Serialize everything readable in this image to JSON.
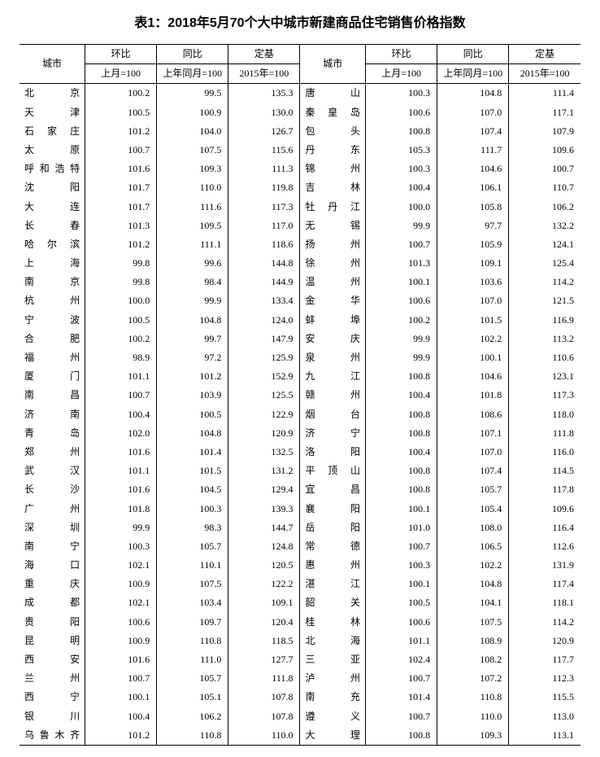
{
  "title": "表1：2018年5月70个大中城市新建商品住宅销售价格指数",
  "header": {
    "city": "城市",
    "huanbi": "环比",
    "tongbi": "同比",
    "dingji": "定基",
    "sub_huanbi": "上月=100",
    "sub_tongbi": "上年同月=100",
    "sub_dingji": "2015年=100"
  },
  "rows": [
    {
      "c1": "北京",
      "h1": "100.2",
      "t1": "99.5",
      "d1": "135.3",
      "c2": "唐山",
      "h2": "100.3",
      "t2": "104.8",
      "d2": "111.4"
    },
    {
      "c1": "天津",
      "h1": "100.5",
      "t1": "100.9",
      "d1": "130.0",
      "c2": "秦皇岛",
      "h2": "100.6",
      "t2": "107.0",
      "d2": "117.1"
    },
    {
      "c1": "石家庄",
      "h1": "101.2",
      "t1": "104.0",
      "d1": "126.7",
      "c2": "包头",
      "h2": "100.8",
      "t2": "107.4",
      "d2": "107.9"
    },
    {
      "c1": "太原",
      "h1": "100.7",
      "t1": "107.5",
      "d1": "115.6",
      "c2": "丹东",
      "h2": "105.3",
      "t2": "111.7",
      "d2": "109.6"
    },
    {
      "c1": "呼和浩特",
      "h1": "101.6",
      "t1": "109.3",
      "d1": "111.3",
      "c2": "锦州",
      "h2": "100.3",
      "t2": "104.6",
      "d2": "100.7"
    },
    {
      "c1": "沈阳",
      "h1": "101.7",
      "t1": "110.0",
      "d1": "119.8",
      "c2": "吉林",
      "h2": "100.4",
      "t2": "106.1",
      "d2": "110.7"
    },
    {
      "c1": "大连",
      "h1": "101.7",
      "t1": "111.6",
      "d1": "117.3",
      "c2": "牡丹江",
      "h2": "100.0",
      "t2": "105.8",
      "d2": "106.2"
    },
    {
      "c1": "长春",
      "h1": "101.3",
      "t1": "109.5",
      "d1": "117.0",
      "c2": "无锡",
      "h2": "99.9",
      "t2": "97.7",
      "d2": "132.2"
    },
    {
      "c1": "哈尔滨",
      "h1": "101.2",
      "t1": "111.1",
      "d1": "118.6",
      "c2": "扬州",
      "h2": "100.7",
      "t2": "105.9",
      "d2": "124.1"
    },
    {
      "c1": "上海",
      "h1": "99.8",
      "t1": "99.6",
      "d1": "144.8",
      "c2": "徐州",
      "h2": "101.3",
      "t2": "109.1",
      "d2": "125.4"
    },
    {
      "c1": "南京",
      "h1": "99.8",
      "t1": "98.4",
      "d1": "144.9",
      "c2": "温州",
      "h2": "100.1",
      "t2": "103.6",
      "d2": "114.2"
    },
    {
      "c1": "杭州",
      "h1": "100.0",
      "t1": "99.9",
      "d1": "133.4",
      "c2": "金华",
      "h2": "100.6",
      "t2": "107.0",
      "d2": "121.5"
    },
    {
      "c1": "宁波",
      "h1": "100.5",
      "t1": "104.8",
      "d1": "124.0",
      "c2": "蚌埠",
      "h2": "100.2",
      "t2": "101.5",
      "d2": "116.9"
    },
    {
      "c1": "合肥",
      "h1": "100.2",
      "t1": "99.7",
      "d1": "147.9",
      "c2": "安庆",
      "h2": "99.9",
      "t2": "102.2",
      "d2": "113.2"
    },
    {
      "c1": "福州",
      "h1": "98.9",
      "t1": "97.2",
      "d1": "125.9",
      "c2": "泉州",
      "h2": "99.9",
      "t2": "100.1",
      "d2": "110.6"
    },
    {
      "c1": "厦门",
      "h1": "101.1",
      "t1": "101.2",
      "d1": "152.9",
      "c2": "九江",
      "h2": "100.8",
      "t2": "104.6",
      "d2": "123.1"
    },
    {
      "c1": "南昌",
      "h1": "100.7",
      "t1": "103.9",
      "d1": "125.5",
      "c2": "赣州",
      "h2": "100.4",
      "t2": "101.8",
      "d2": "117.3"
    },
    {
      "c1": "济南",
      "h1": "100.4",
      "t1": "100.5",
      "d1": "122.9",
      "c2": "烟台",
      "h2": "100.8",
      "t2": "108.6",
      "d2": "118.0"
    },
    {
      "c1": "青岛",
      "h1": "102.0",
      "t1": "104.8",
      "d1": "120.9",
      "c2": "济宁",
      "h2": "100.8",
      "t2": "107.1",
      "d2": "111.8"
    },
    {
      "c1": "郑州",
      "h1": "101.6",
      "t1": "101.4",
      "d1": "132.5",
      "c2": "洛阳",
      "h2": "100.4",
      "t2": "107.0",
      "d2": "116.0"
    },
    {
      "c1": "武汉",
      "h1": "101.1",
      "t1": "101.5",
      "d1": "131.2",
      "c2": "平顶山",
      "h2": "100.8",
      "t2": "107.4",
      "d2": "114.5"
    },
    {
      "c1": "长沙",
      "h1": "101.6",
      "t1": "104.5",
      "d1": "129.4",
      "c2": "宜昌",
      "h2": "100.8",
      "t2": "105.7",
      "d2": "117.8"
    },
    {
      "c1": "广州",
      "h1": "101.8",
      "t1": "100.3",
      "d1": "139.3",
      "c2": "襄阳",
      "h2": "100.1",
      "t2": "105.4",
      "d2": "109.6"
    },
    {
      "c1": "深圳",
      "h1": "99.9",
      "t1": "98.3",
      "d1": "144.7",
      "c2": "岳阳",
      "h2": "101.0",
      "t2": "108.0",
      "d2": "116.4"
    },
    {
      "c1": "南宁",
      "h1": "100.3",
      "t1": "105.7",
      "d1": "124.8",
      "c2": "常德",
      "h2": "100.7",
      "t2": "106.5",
      "d2": "112.6"
    },
    {
      "c1": "海口",
      "h1": "102.1",
      "t1": "110.1",
      "d1": "120.5",
      "c2": "惠州",
      "h2": "100.3",
      "t2": "102.2",
      "d2": "131.9"
    },
    {
      "c1": "重庆",
      "h1": "100.9",
      "t1": "107.5",
      "d1": "122.2",
      "c2": "湛江",
      "h2": "100.1",
      "t2": "104.8",
      "d2": "117.4"
    },
    {
      "c1": "成都",
      "h1": "102.1",
      "t1": "103.4",
      "d1": "109.1",
      "c2": "韶关",
      "h2": "100.5",
      "t2": "104.1",
      "d2": "118.1"
    },
    {
      "c1": "贵阳",
      "h1": "100.6",
      "t1": "109.7",
      "d1": "120.4",
      "c2": "桂林",
      "h2": "100.6",
      "t2": "107.5",
      "d2": "114.2"
    },
    {
      "c1": "昆明",
      "h1": "100.9",
      "t1": "110.8",
      "d1": "118.5",
      "c2": "北海",
      "h2": "101.1",
      "t2": "108.9",
      "d2": "120.9"
    },
    {
      "c1": "西安",
      "h1": "101.6",
      "t1": "111.0",
      "d1": "127.7",
      "c2": "三亚",
      "h2": "102.4",
      "t2": "108.2",
      "d2": "117.7"
    },
    {
      "c1": "兰州",
      "h1": "100.7",
      "t1": "105.7",
      "d1": "111.8",
      "c2": "泸州",
      "h2": "100.7",
      "t2": "107.2",
      "d2": "112.3"
    },
    {
      "c1": "西宁",
      "h1": "100.1",
      "t1": "105.1",
      "d1": "107.8",
      "c2": "南充",
      "h2": "101.4",
      "t2": "110.8",
      "d2": "115.5"
    },
    {
      "c1": "银川",
      "h1": "100.4",
      "t1": "106.2",
      "d1": "107.8",
      "c2": "遵义",
      "h2": "100.7",
      "t2": "110.0",
      "d2": "113.0"
    },
    {
      "c1": "乌鲁木齐",
      "h1": "101.2",
      "t1": "110.8",
      "d1": "110.0",
      "c2": "大理",
      "h2": "100.8",
      "t2": "109.3",
      "d2": "113.1"
    }
  ]
}
